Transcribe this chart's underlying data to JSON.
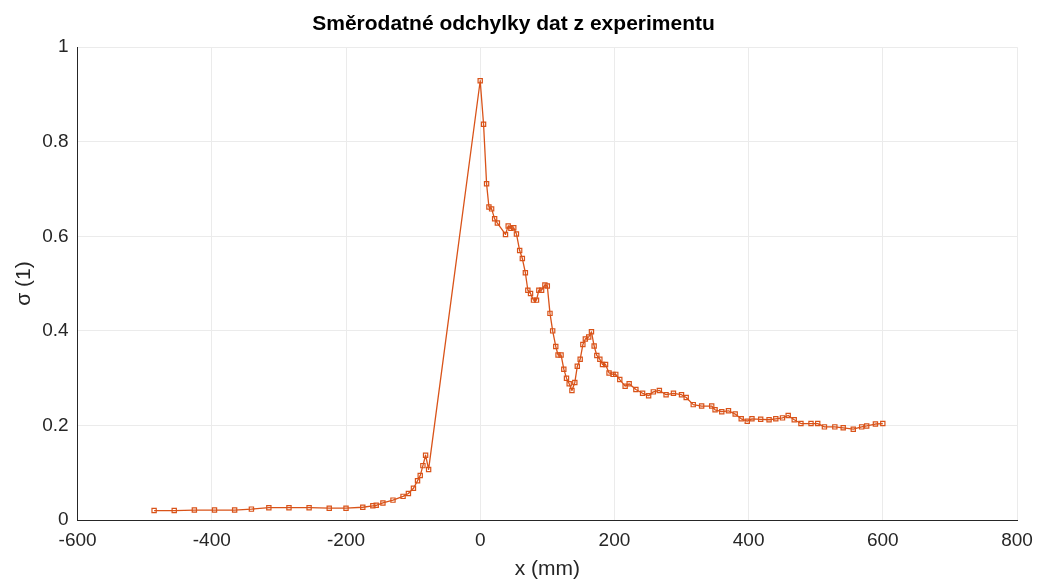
{
  "chart_data": {
    "type": "line",
    "title": "Směrodatné odchylky dat z experimentu",
    "xlabel": "x (mm)",
    "ylabel": "σ (1)",
    "xlim": [
      -600,
      800
    ],
    "xticks": [
      -600,
      -400,
      -200,
      0,
      200,
      400,
      600,
      800
    ],
    "ylim": [
      0,
      1
    ],
    "yticks": [
      0,
      0.2,
      0.4,
      0.6,
      0.8,
      1
    ],
    "grid": true,
    "marker": "square",
    "line_style": "solid",
    "series": [
      {
        "color": "#d95319",
        "x": [
          -486,
          -456,
          -426,
          -396,
          -366,
          -341,
          -315,
          -285,
          -255,
          -225,
          -200,
          -175,
          -160,
          -155,
          -145,
          -130,
          -115,
          -107,
          -99.5,
          -93.4,
          -89.4,
          -85.4,
          -81.4,
          -76.9,
          0,
          5,
          9.5,
          13,
          17,
          21.5,
          25.6,
          37.7,
          41.7,
          45.7,
          50,
          54,
          58.8,
          62.8,
          67.3,
          71,
          75,
          79.4,
          83.9,
          87.4,
          91.5,
          96.4,
          100,
          104,
          108,
          112.6,
          116,
          120.5,
          124.6,
          128.6,
          132.6,
          136.7,
          141,
          144.7,
          149,
          153,
          156.7,
          161.7,
          165.8,
          169.8,
          173.8,
          178.3,
          182.3,
          186.8,
          192,
          198,
          202,
          208,
          216,
          222,
          232,
          242,
          251,
          258,
          267,
          277,
          288,
          300,
          307,
          317.5,
          330,
          345,
          350,
          360,
          370,
          380,
          389,
          398,
          405,
          418,
          430.5,
          440.5,
          450.5,
          459,
          468,
          478,
          493,
          503,
          513,
          528.5,
          541,
          556,
          568.5,
          576,
          589,
          600
        ],
        "values": [
          0.02,
          0.02,
          0.021,
          0.021,
          0.021,
          0.023,
          0.026,
          0.026,
          0.026,
          0.025,
          0.025,
          0.027,
          0.03,
          0.031,
          0.036,
          0.042,
          0.05,
          0.056,
          0.067,
          0.083,
          0.094,
          0.115,
          0.137,
          0.107,
          0.929,
          0.837,
          0.711,
          0.662,
          0.658,
          0.637,
          0.628,
          0.604,
          0.622,
          0.617,
          0.618,
          0.605,
          0.57,
          0.553,
          0.523,
          0.486,
          0.479,
          0.465,
          0.465,
          0.486,
          0.486,
          0.497,
          0.495,
          0.437,
          0.4,
          0.367,
          0.349,
          0.349,
          0.319,
          0.3,
          0.288,
          0.274,
          0.291,
          0.325,
          0.34,
          0.371,
          0.383,
          0.387,
          0.398,
          0.368,
          0.348,
          0.34,
          0.329,
          0.329,
          0.311,
          0.308,
          0.308,
          0.297,
          0.283,
          0.288,
          0.276,
          0.268,
          0.263,
          0.271,
          0.274,
          0.265,
          0.268,
          0.265,
          0.259,
          0.244,
          0.241,
          0.241,
          0.233,
          0.229,
          0.231,
          0.224,
          0.214,
          0.209,
          0.214,
          0.213,
          0.212,
          0.214,
          0.216,
          0.221,
          0.212,
          0.204,
          0.204,
          0.204,
          0.197,
          0.197,
          0.195,
          0.192,
          0.197,
          0.199,
          0.203,
          0.204
        ]
      }
    ]
  }
}
